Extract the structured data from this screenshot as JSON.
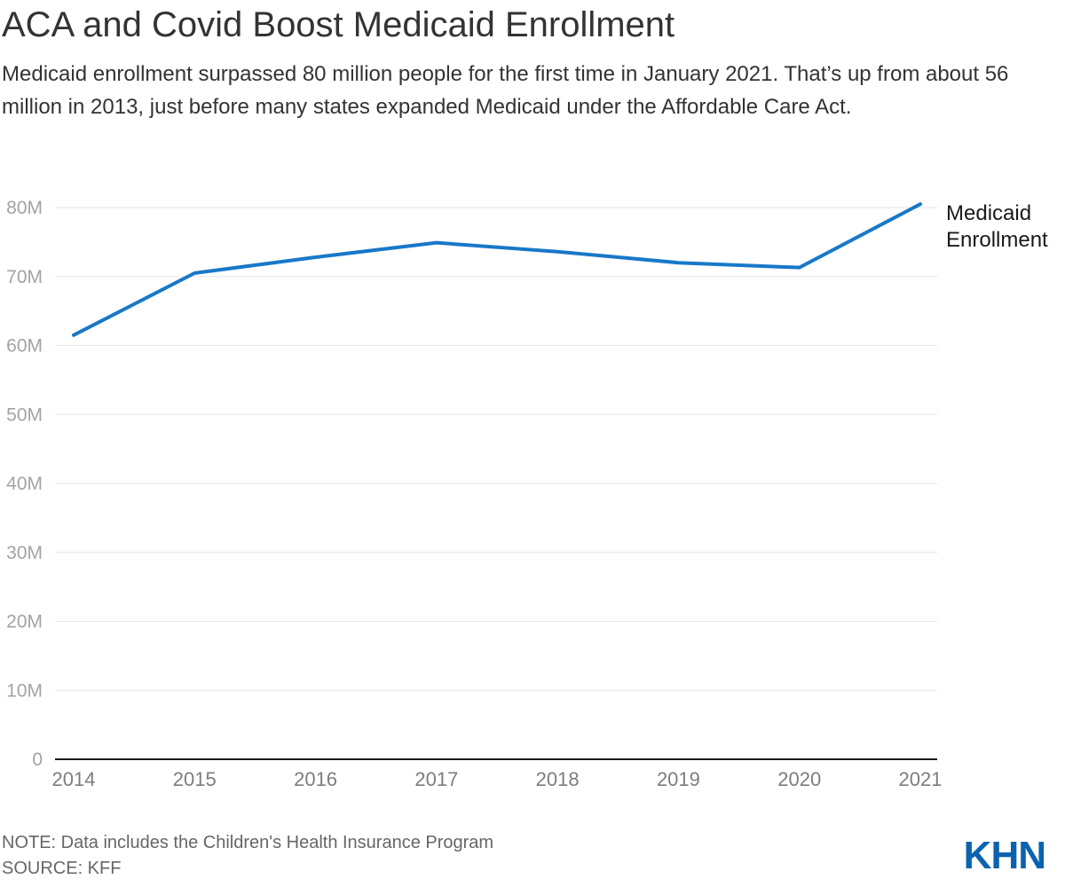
{
  "header": {
    "title": "ACA and Covid Boost Medicaid Enrollment",
    "subtitle": "Medicaid enrollment surpassed 80 million people for the first time in January 2021. That’s up from about 56 million in 2013, just before many states expanded Medicaid under the Affordable Care Act."
  },
  "chart_data": {
    "type": "line",
    "title": "ACA and Covid Boost Medicaid Enrollment",
    "categories": [
      "2014",
      "2015",
      "2016",
      "2017",
      "2018",
      "2019",
      "2020",
      "2021"
    ],
    "series": [
      {
        "name": "Medicaid Enrollment",
        "values": [
          61.5,
          70.5,
          72.8,
          74.9,
          73.6,
          72.0,
          71.3,
          80.5
        ]
      }
    ],
    "unit": "millions of people",
    "xlabel": "",
    "ylabel": "",
    "ylim": [
      0,
      80
    ],
    "y_ticks": [
      "0",
      "10M",
      "20M",
      "30M",
      "40M",
      "50M",
      "60M",
      "70M",
      "80M"
    ],
    "grid": "horizontal",
    "legend_position": "right-of-line-end",
    "legend_lines": [
      "Medicaid",
      "Enrollment"
    ],
    "colors": {
      "line": "#1878c8",
      "gridline": "#e6e6e6",
      "axis": "#1a1a1a",
      "y_tick_text": "#a3a3a3",
      "x_tick_text": "#7d7d7d",
      "legend_text": "#1a1a1a"
    }
  },
  "footer": {
    "note": "NOTE: Data includes the Children's Health Insurance Program",
    "source": "SOURCE: KFF",
    "logo": "KHN",
    "logo_color": "#0b63b0"
  }
}
